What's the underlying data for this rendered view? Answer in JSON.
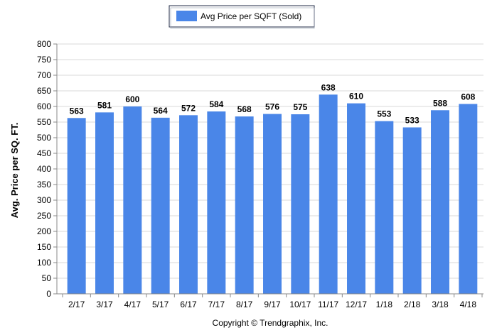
{
  "chart_data": {
    "type": "bar",
    "title": "",
    "xlabel": "",
    "ylabel": "Avg. Price per SQ. FT.",
    "categories": [
      "2/17",
      "3/17",
      "4/17",
      "5/17",
      "6/17",
      "7/17",
      "8/17",
      "9/17",
      "10/17",
      "11/17",
      "12/17",
      "1/18",
      "2/18",
      "3/18",
      "4/18"
    ],
    "series": [
      {
        "name": "Avg Price per SQFT (Sold)",
        "values": [
          563,
          581,
          600,
          564,
          572,
          584,
          568,
          576,
          575,
          638,
          610,
          553,
          533,
          588,
          608
        ],
        "color": "#4a86e8"
      }
    ],
    "ylim": [
      0,
      800
    ],
    "yticks": [
      0,
      50,
      100,
      150,
      200,
      250,
      300,
      350,
      400,
      450,
      500,
      550,
      600,
      650,
      700,
      750,
      800
    ],
    "grid": true,
    "legend_position": "top-center",
    "data_labels": true
  },
  "footer": {
    "copyright": "Copyright © Trendgraphix, Inc."
  }
}
